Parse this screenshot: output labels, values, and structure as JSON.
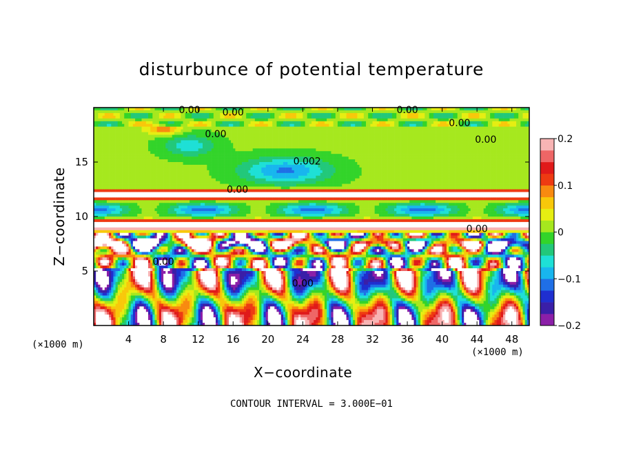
{
  "chart_data": {
    "type": "heatmap",
    "title": "disturbunce of potential temperature",
    "xlabel": "X−coordinate",
    "ylabel": "Z−coordinate",
    "x_unit_left": "(×1000 m)",
    "x_unit_right": "(×1000 m)",
    "footer": "CONTOUR INTERVAL = 3.000E−01",
    "xlim": [
      0,
      50
    ],
    "ylim": [
      0,
      20
    ],
    "x_ticks": [
      4,
      8,
      12,
      16,
      20,
      24,
      28,
      32,
      36,
      40,
      44,
      48
    ],
    "y_ticks": [
      5,
      10,
      15
    ],
    "colorbar": {
      "range": [
        -0.2,
        0.2
      ],
      "tick_values": [
        0.2,
        0.1,
        0,
        -0.1,
        -0.2
      ],
      "tick_labels": [
        "0.2",
        "0.1",
        "0",
        "−0.1",
        "−0.2"
      ],
      "colors": [
        "#8b1fa8",
        "#3a1fa8",
        "#1f2fd0",
        "#1f6fe6",
        "#18b6ee",
        "#1ee0d6",
        "#22c87a",
        "#33d42a",
        "#a6e81e",
        "#e6ee12",
        "#f8c80a",
        "#f88a10",
        "#ee3a12",
        "#e01a1a",
        "#ee6666",
        "#f8b4b4"
      ]
    },
    "contour_labels": [
      {
        "x": 11,
        "z": 19.8,
        "text": "0.00"
      },
      {
        "x": 16,
        "z": 19.6,
        "text": "0.00"
      },
      {
        "x": 36,
        "z": 19.8,
        "text": "0.00"
      },
      {
        "x": 42,
        "z": 18.6,
        "text": "0.00"
      },
      {
        "x": 45,
        "z": 17.1,
        "text": "0.00"
      },
      {
        "x": 14,
        "z": 17.6,
        "text": "0.00"
      },
      {
        "x": 24.5,
        "z": 15.1,
        "text": "0.002"
      },
      {
        "x": 16.5,
        "z": 12.5,
        "text": "0.00"
      },
      {
        "x": 44,
        "z": 8.9,
        "text": "0.00"
      },
      {
        "x": 8,
        "z": 5.9,
        "text": "0.00"
      },
      {
        "x": 24,
        "z": 3.9,
        "text": "0.00"
      }
    ]
  }
}
